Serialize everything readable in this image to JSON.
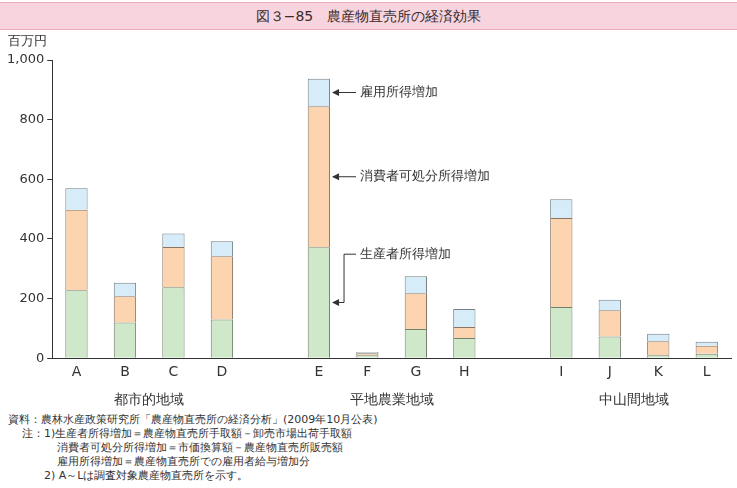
{
  "chart_data": {
    "type": "bar",
    "title": "図３−85　農産物直売所の経済効果",
    "y_label": "百万円",
    "categories": [
      "A",
      "B",
      "C",
      "D",
      null,
      "E",
      "F",
      "G",
      "H",
      null,
      "I",
      "J",
      "K",
      "L"
    ],
    "groups": [
      {
        "label": "都市的地域",
        "categories": [
          "A",
          "B",
          "C",
          "D"
        ]
      },
      {
        "label": "平地農業地域",
        "categories": [
          "E",
          "F",
          "G",
          "H"
        ]
      },
      {
        "label": "中山間地域",
        "categories": [
          "I",
          "J",
          "K",
          "L"
        ]
      }
    ],
    "series": [
      {
        "name": "生産者所得増加",
        "color": "#cfe8c9",
        "values": [
          228,
          120,
          238,
          130,
          null,
          372,
          10,
          98,
          68,
          null,
          172,
          73,
          10,
          15
        ]
      },
      {
        "name": "消費者可処分所得増加",
        "color": "#fcd5b0",
        "values": [
          270,
          88,
          135,
          212,
          null,
          473,
          7,
          120,
          37,
          null,
          298,
          88,
          47,
          27
        ]
      },
      {
        "name": "雇用所得増加",
        "color": "#d6ecf8",
        "values": [
          72,
          45,
          45,
          50,
          null,
          92,
          4,
          57,
          60,
          null,
          63,
          35,
          25,
          13
        ]
      }
    ],
    "stacked": true,
    "ylim": [
      0,
      1000
    ],
    "yticks": [
      0,
      200,
      400,
      600,
      800,
      {
        "value": 1000,
        "label": "1,000"
      }
    ],
    "grid": false,
    "annotations": [
      {
        "text": "雇用所得増加",
        "category": "E"
      },
      {
        "text": "消費者可処分所得増加",
        "category": "E"
      },
      {
        "text": "生産者所得増加",
        "category": "E"
      }
    ],
    "source": "資料：農林水産政策研究所「農産物直売所の経済分析」(2009年10月公表)",
    "notes": {
      "label": "注：",
      "items": [
        [
          "1)生産者所得増加＝農産物直売所手取額－卸売市場出荷手取額",
          "消費者可処分所得増加＝市価換算額－農産物直売所販売額",
          "雇用所得増加＝農産物直売所での雇用者給与増加分"
        ],
        [
          "2) A～Lは調査対象農産物直売所を示す。"
        ]
      ]
    }
  }
}
